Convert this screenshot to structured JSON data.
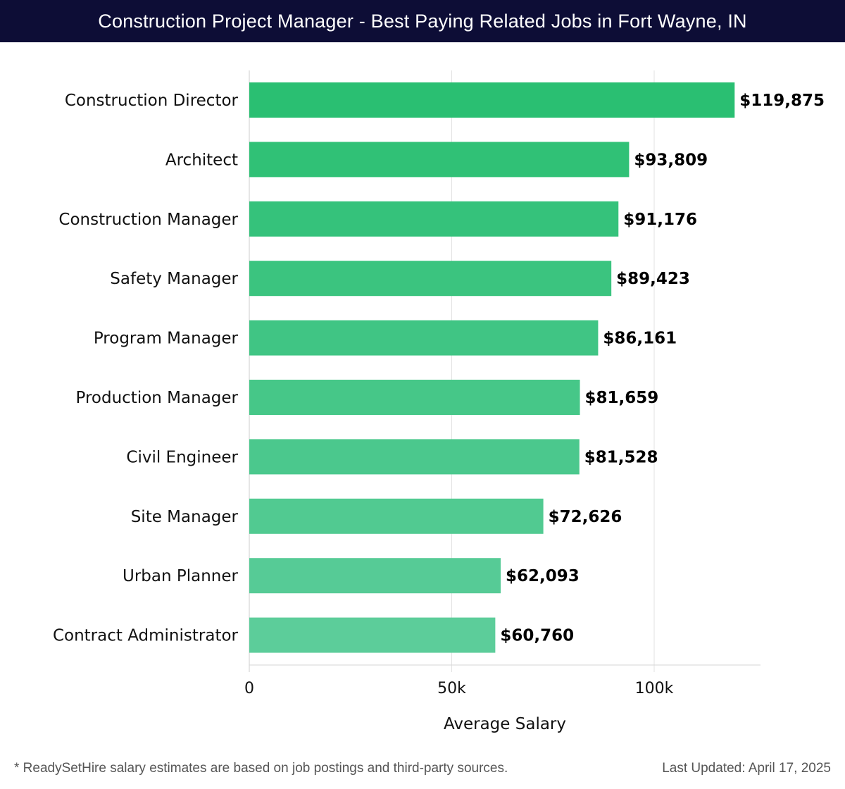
{
  "header": {
    "title": "Construction Project Manager - Best Paying Related Jobs in Fort Wayne, IN"
  },
  "chart_data": {
    "type": "bar",
    "orientation": "horizontal",
    "title": "Construction Project Manager - Best Paying Related Jobs in Fort Wayne, IN",
    "categories": [
      "Construction Director",
      "Architect",
      "Construction Manager",
      "Safety Manager",
      "Program Manager",
      "Production Manager",
      "Civil Engineer",
      "Site Manager",
      "Urban Planner",
      "Contract Administrator"
    ],
    "values": [
      119875,
      93809,
      91176,
      89423,
      86161,
      81659,
      81528,
      72626,
      62093,
      60760
    ],
    "value_labels": [
      "$119,875",
      "$93,809",
      "$91,176",
      "$89,423",
      "$86,161",
      "$81,659",
      "$81,528",
      "$72,626",
      "$62,093",
      "$60,760"
    ],
    "xlabel": "Average Salary",
    "ylabel": "",
    "xlim": [
      0,
      126000
    ],
    "xticks": [
      0,
      50000,
      100000
    ],
    "xtick_labels": [
      "0",
      "50k",
      "100k"
    ],
    "grid": true,
    "bar_color_top": "#2abf72",
    "bar_color_bottom": "#5ccd9a"
  },
  "footer": {
    "note": "* ReadySetHire salary estimates are based on job postings and third-party sources.",
    "updated": "Last Updated: April 17, 2025"
  }
}
